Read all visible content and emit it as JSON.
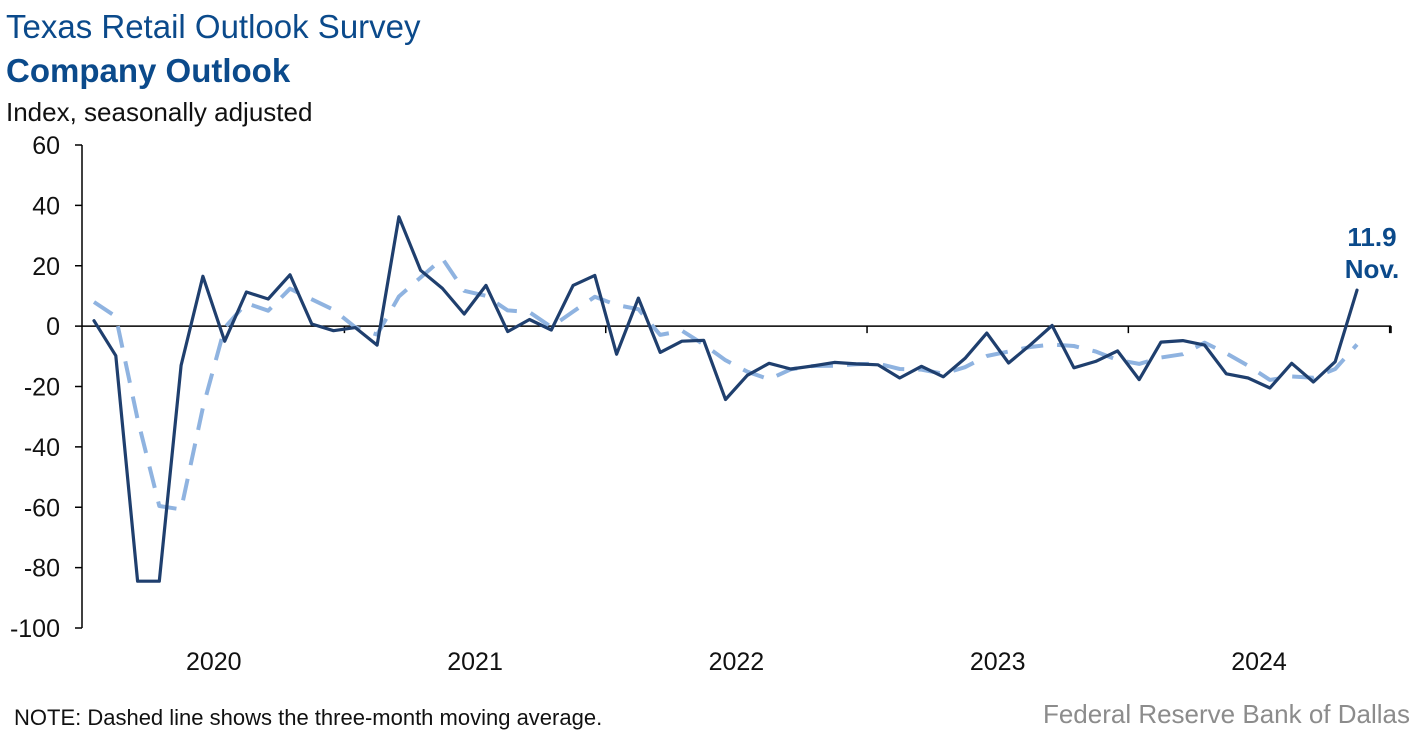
{
  "header": {
    "title": "Texas Retail Outlook Survey",
    "subtitle": "Company Outlook",
    "ylabel": "Index, seasonally adjusted"
  },
  "footer": {
    "note": "NOTE: Dashed line shows the three-month moving average.",
    "source": "Federal Reserve Bank of Dallas"
  },
  "chart_data": {
    "type": "line",
    "title": "Company Outlook",
    "ylabel": "Index, seasonally adjusted",
    "ylim": [
      -100,
      60
    ],
    "yticks": [
      60,
      40,
      20,
      0,
      -20,
      -40,
      -60,
      -80,
      -100
    ],
    "xticks": [
      "2020",
      "2021",
      "2022",
      "2023",
      "2024"
    ],
    "x_start": "2020-01",
    "x_end": "2024-11",
    "colors": {
      "index": "#1f3f6e",
      "moving_average": "#8fb3e0",
      "zero_line": "#000000"
    },
    "series": [
      {
        "name": "Index",
        "style": "solid",
        "values": [
          1.8,
          -9.8,
          -84.5,
          -84.5,
          -13.0,
          16.5,
          -5.0,
          11.3,
          9.0,
          17.0,
          0.7,
          -1.5,
          -0.5,
          -6.3,
          36.2,
          18.5,
          12.5,
          4.0,
          13.5,
          -1.8,
          2.2,
          -1.3,
          13.5,
          16.8,
          -9.3,
          9.3,
          -8.7,
          -5.0,
          -4.7,
          -24.3,
          -16.3,
          -12.3,
          -14.2,
          -13.2,
          -12.0,
          -12.5,
          -12.8,
          -17.2,
          -13.3,
          -16.8,
          -10.7,
          -2.3,
          -12.2,
          -6.2,
          0.2,
          -13.8,
          -11.7,
          -8.2,
          -17.7,
          -5.3,
          -4.8,
          -6.3,
          -15.8,
          -17.2,
          -20.5,
          -12.3,
          -18.5,
          -11.8,
          11.9
        ]
      },
      {
        "name": "Three-month moving average",
        "style": "dashed",
        "values": [
          8.0,
          3.2,
          -30.8,
          -59.6,
          -60.7,
          -27.0,
          -0.5,
          7.6,
          5.1,
          12.4,
          8.9,
          5.4,
          -0.4,
          -2.8,
          9.8,
          16.1,
          22.4,
          11.7,
          10.0,
          5.2,
          4.6,
          -0.3,
          4.8,
          9.7,
          7.0,
          5.6,
          -2.9,
          -1.5,
          -6.1,
          -11.3,
          -15.1,
          -17.6,
          -14.3,
          -13.2,
          -13.1,
          -12.6,
          -12.4,
          -14.2,
          -14.4,
          -15.8,
          -13.6,
          -9.9,
          -8.4,
          -6.9,
          -6.1,
          -6.6,
          -8.4,
          -11.2,
          -12.5,
          -10.4,
          -9.3,
          -5.5,
          -9.0,
          -13.1,
          -17.8,
          -16.7,
          -17.1,
          -14.2,
          -6.1
        ]
      }
    ],
    "annotation": {
      "value": "11.9",
      "label": "Nov."
    }
  }
}
